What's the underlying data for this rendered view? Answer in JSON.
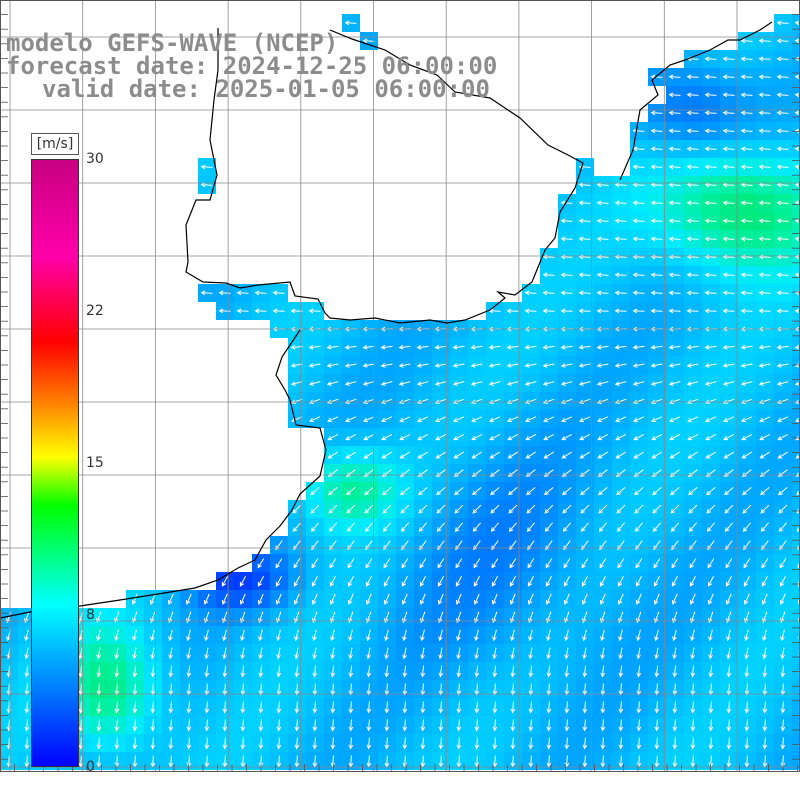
{
  "title": {
    "line1": "modelo GEFS-WAVE (NCEP)",
    "line2": "forecast date: 2024-12-25 06:00:00",
    "line3": "valid date: 2025-01-05 06:00:00"
  },
  "colorbar": {
    "unit": "[m/s]",
    "min": 0,
    "max": 30,
    "tick_labels": [
      "30",
      "22",
      "15",
      "8",
      "0"
    ],
    "tick_values": [
      30,
      22,
      15,
      8,
      0
    ],
    "colors": [
      "#0000ff",
      "#0080ff",
      "#00ffff",
      "#00ff00",
      "#ffff00",
      "#ff8000",
      "#ff0000",
      "#ff00aa",
      "#c80080"
    ]
  },
  "map": {
    "variable": "wind speed and direction",
    "land_color": "#ffffff",
    "grid_color": "#888888",
    "coastline_color": "#000000",
    "arrow_color": "#ffffff"
  }
}
